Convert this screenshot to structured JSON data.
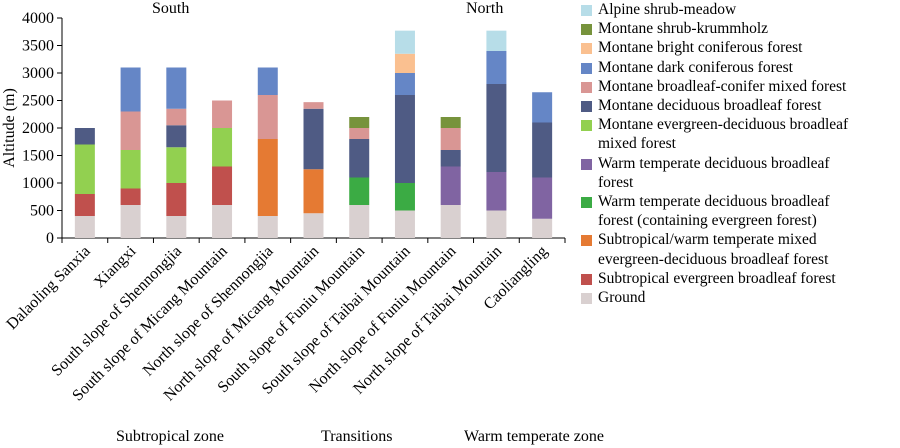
{
  "chart_data": {
    "type": "bar",
    "stacked": true,
    "ylabel": "Altitude (m)",
    "ylim": [
      0,
      4000
    ],
    "yticks": [
      0,
      500,
      1000,
      1500,
      2000,
      2500,
      3000,
      3500,
      4000
    ],
    "grid": false,
    "legend_position": "right",
    "categories": [
      "Dalaoling Sanxia",
      "Xiangxi",
      "South slope of Shennongjia",
      "South slope of Micang Mountain",
      "North slope of Shennongjia",
      "North slope of Micang Mountain",
      "South slope of Funiu Mountain",
      "South slope of Taibai Mountain",
      "North slope of Funiu Mountain",
      "North slope of Taibai Mountain",
      "Caoliangling"
    ],
    "group_labels": {
      "top": [
        "South",
        "North"
      ],
      "bottom": [
        "Subtropical zone",
        "Transitions",
        "Warm temperate zone"
      ]
    },
    "legend": [
      {
        "name": "Alpine shrub-meadow",
        "color": "#b7dde8"
      },
      {
        "name": "Montane shrub-krummholz",
        "color": "#77933c"
      },
      {
        "name": "Montane bright coniferous forest",
        "color": "#fac090"
      },
      {
        "name": "Montane dark coniferous forest",
        "color": "#6586c6"
      },
      {
        "name": "Montane broadleaf-conifer mixed forest",
        "color": "#d99694"
      },
      {
        "name": "Montane deciduous broadleaf forest",
        "color": "#4f5b84"
      },
      {
        "name": "Montane evergreen-deciduous broadleaf\nmixed forest",
        "color": "#92d050"
      },
      {
        "name": "Warm temperate deciduous broadleaf\nforest",
        "color": "#8064a2"
      },
      {
        "name": "Warm temperate deciduous broadleaf\nforest (containing evergreen forest)",
        "color": "#3bab44"
      },
      {
        "name": "Subtropical/warm temperate mixed\nevergreen-deciduous broadleaf forest",
        "color": "#e57a33"
      },
      {
        "name": "Subtropical evergreen broadleaf forest",
        "color": "#c0504d"
      },
      {
        "name": "Ground",
        "color": "#d9d0d0"
      }
    ],
    "bars": [
      [
        {
          "type": 11,
          "from": 0,
          "to": 400
        },
        {
          "type": 10,
          "from": 400,
          "to": 800
        },
        {
          "type": 6,
          "from": 800,
          "to": 1700
        },
        {
          "type": 5,
          "from": 1700,
          "to": 2000
        }
      ],
      [
        {
          "type": 11,
          "from": 0,
          "to": 600
        },
        {
          "type": 10,
          "from": 600,
          "to": 900
        },
        {
          "type": 6,
          "from": 900,
          "to": 1600
        },
        {
          "type": 4,
          "from": 1600,
          "to": 2300
        },
        {
          "type": 3,
          "from": 2300,
          "to": 3100
        }
      ],
      [
        {
          "type": 11,
          "from": 0,
          "to": 400
        },
        {
          "type": 10,
          "from": 400,
          "to": 1000
        },
        {
          "type": 6,
          "from": 1000,
          "to": 1650
        },
        {
          "type": 5,
          "from": 1650,
          "to": 2050
        },
        {
          "type": 4,
          "from": 2050,
          "to": 2350
        },
        {
          "type": 3,
          "from": 2350,
          "to": 3100
        }
      ],
      [
        {
          "type": 11,
          "from": 0,
          "to": 600
        },
        {
          "type": 10,
          "from": 600,
          "to": 1300
        },
        {
          "type": 6,
          "from": 1300,
          "to": 2000
        },
        {
          "type": 4,
          "from": 2000,
          "to": 2500
        }
      ],
      [
        {
          "type": 11,
          "from": 0,
          "to": 400
        },
        {
          "type": 9,
          "from": 400,
          "to": 1800
        },
        {
          "type": 4,
          "from": 1800,
          "to": 2600
        },
        {
          "type": 3,
          "from": 2600,
          "to": 3100
        }
      ],
      [
        {
          "type": 11,
          "from": 0,
          "to": 450
        },
        {
          "type": 9,
          "from": 450,
          "to": 1250
        },
        {
          "type": 5,
          "from": 1250,
          "to": 2350
        },
        {
          "type": 4,
          "from": 2350,
          "to": 2470
        }
      ],
      [
        {
          "type": 11,
          "from": 0,
          "to": 600
        },
        {
          "type": 8,
          "from": 600,
          "to": 1100
        },
        {
          "type": 5,
          "from": 1100,
          "to": 1800
        },
        {
          "type": 4,
          "from": 1800,
          "to": 2000
        },
        {
          "type": 1,
          "from": 2000,
          "to": 2200
        }
      ],
      [
        {
          "type": 11,
          "from": 0,
          "to": 500
        },
        {
          "type": 8,
          "from": 500,
          "to": 1000
        },
        {
          "type": 5,
          "from": 1000,
          "to": 2600
        },
        {
          "type": 3,
          "from": 2600,
          "to": 3000
        },
        {
          "type": 2,
          "from": 3000,
          "to": 3350
        },
        {
          "type": 0,
          "from": 3350,
          "to": 3770
        }
      ],
      [
        {
          "type": 11,
          "from": 0,
          "to": 600
        },
        {
          "type": 7,
          "from": 600,
          "to": 1300
        },
        {
          "type": 5,
          "from": 1300,
          "to": 1600
        },
        {
          "type": 4,
          "from": 1600,
          "to": 2000
        },
        {
          "type": 1,
          "from": 2000,
          "to": 2200
        }
      ],
      [
        {
          "type": 11,
          "from": 0,
          "to": 500
        },
        {
          "type": 7,
          "from": 500,
          "to": 1200
        },
        {
          "type": 5,
          "from": 1200,
          "to": 2800
        },
        {
          "type": 3,
          "from": 2800,
          "to": 3400
        },
        {
          "type": 0,
          "from": 3400,
          "to": 3770
        }
      ],
      [
        {
          "type": 11,
          "from": 0,
          "to": 350
        },
        {
          "type": 7,
          "from": 350,
          "to": 1100
        },
        {
          "type": 5,
          "from": 1100,
          "to": 2100
        },
        {
          "type": 3,
          "from": 2100,
          "to": 2650
        }
      ]
    ]
  }
}
